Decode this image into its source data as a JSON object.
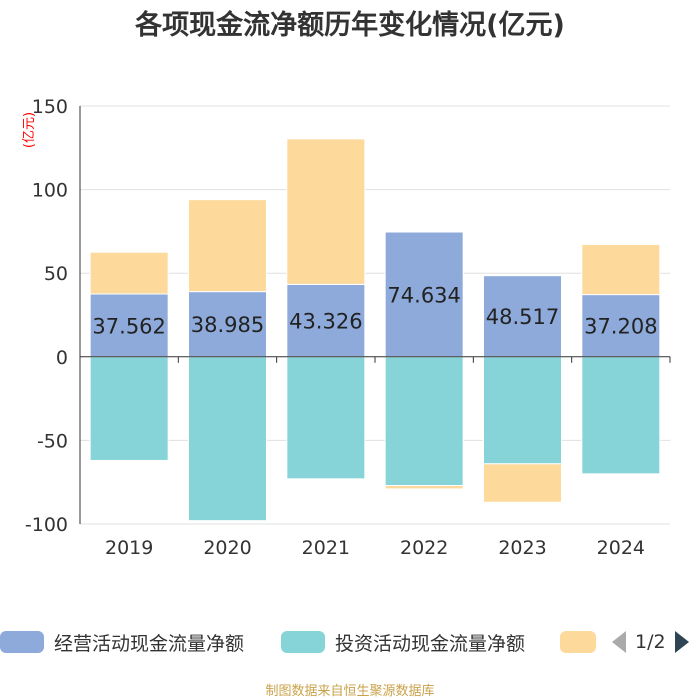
{
  "chart_data": {
    "type": "bar",
    "stacked": true,
    "title": "各项现金流净额历年变化情况(亿元)",
    "ylabel": "(亿元)",
    "ylim": [
      -100,
      150
    ],
    "yticks": [
      -100,
      -50,
      0,
      50,
      100,
      150
    ],
    "categories": [
      "2019",
      "2020",
      "2021",
      "2022",
      "2023",
      "2024"
    ],
    "series": [
      {
        "name": "经营活动现金流量净额",
        "color": "#8eaadb",
        "values": [
          37.562,
          38.985,
          43.326,
          74.634,
          48.517,
          37.208
        ],
        "labels": [
          "37.562",
          "38.985",
          "43.326",
          "74.634",
          "48.517",
          "37.208"
        ]
      },
      {
        "name": "投资活动现金流量净额",
        "color": "#86d4d7",
        "values": [
          -62,
          -98,
          -73,
          -77,
          -64,
          -70
        ]
      },
      {
        "name": "",
        "color": "#fdd99b",
        "values": [
          25,
          55,
          87,
          -2,
          -23,
          30
        ]
      }
    ],
    "grid": true,
    "legend_position": "bottom"
  },
  "legend": {
    "items": [
      {
        "label": "经营活动现金流量净额",
        "color": "#8eaadb"
      },
      {
        "label": "投资活动现金流量净额",
        "color": "#86d4d7"
      },
      {
        "label": "",
        "color": "#fdd99b"
      }
    ],
    "page": "1/2"
  },
  "colors": {
    "title": "#333333",
    "axis_label": "#ff0000",
    "footer": "#c9a24a"
  },
  "footer": {
    "source": "制图数据来自恒生聚源数据库"
  }
}
